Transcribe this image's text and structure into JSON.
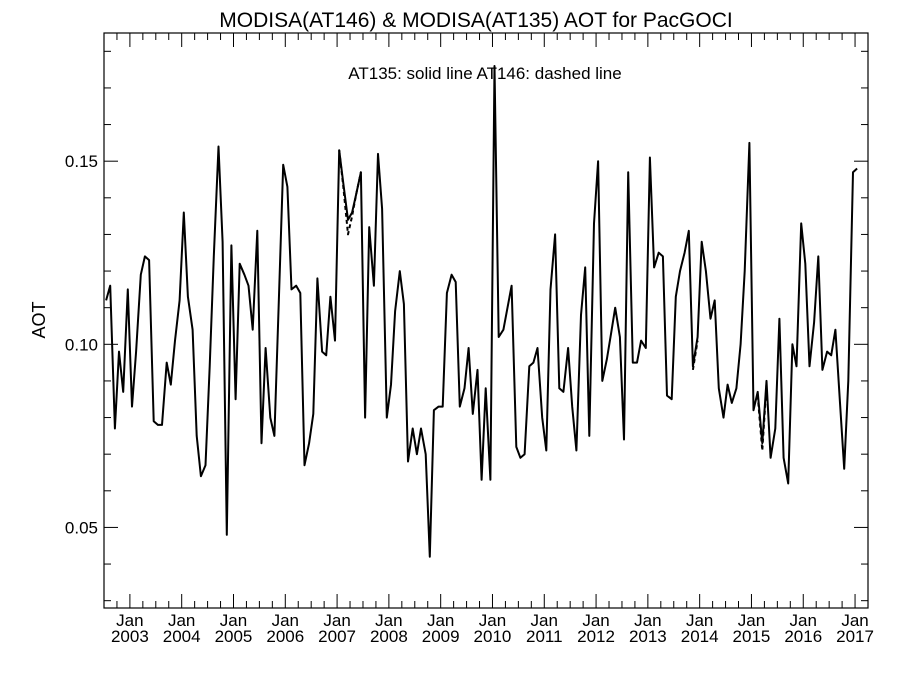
{
  "chart_data": {
    "type": "line",
    "title": "MODISA(AT146) & MODISA(AT135)  AOT for PacGOCI",
    "annotation": "AT135: solid line   AT146: dashed line",
    "ylabel": "AOT",
    "xlabel": "",
    "xlim": [
      2002.5,
      2017.25
    ],
    "ylim": [
      0.028,
      0.185
    ],
    "y_ticks": [
      0.05,
      0.1,
      0.15
    ],
    "y_tick_labels": [
      "0.05",
      "0.10",
      "0.15"
    ],
    "x_ticks": [
      {
        "month": "Jan",
        "year": "2003",
        "x": 2003.0
      },
      {
        "month": "Jan",
        "year": "2004",
        "x": 2004.0
      },
      {
        "month": "Jan",
        "year": "2005",
        "x": 2005.0
      },
      {
        "month": "Jan",
        "year": "2006",
        "x": 2006.0
      },
      {
        "month": "Jan",
        "year": "2007",
        "x": 2007.0
      },
      {
        "month": "Jan",
        "year": "2008",
        "x": 2008.0
      },
      {
        "month": "Jan",
        "year": "2009",
        "x": 2009.0
      },
      {
        "month": "Jan",
        "year": "2010",
        "x": 2010.0
      },
      {
        "month": "Jan",
        "year": "2011",
        "x": 2011.0
      },
      {
        "month": "Jan",
        "year": "2012",
        "x": 2012.0
      },
      {
        "month": "Jan",
        "year": "2013",
        "x": 2013.0
      },
      {
        "month": "Jan",
        "year": "2014",
        "x": 2014.0
      },
      {
        "month": "Jan",
        "year": "2015",
        "x": 2015.0
      },
      {
        "month": "Jan",
        "year": "2016",
        "x": 2016.0
      },
      {
        "month": "Jan",
        "year": "2017",
        "x": 2017.0
      }
    ],
    "grid": false,
    "series": [
      {
        "name": "AT135",
        "style": "solid",
        "color": "#000000",
        "points": [
          [
            2002.54,
            0.112
          ],
          [
            2002.62,
            0.116
          ],
          [
            2002.71,
            0.077
          ],
          [
            2002.79,
            0.098
          ],
          [
            2002.87,
            0.087
          ],
          [
            2002.96,
            0.115
          ],
          [
            2003.04,
            0.083
          ],
          [
            2003.12,
            0.098
          ],
          [
            2003.21,
            0.119
          ],
          [
            2003.29,
            0.124
          ],
          [
            2003.37,
            0.123
          ],
          [
            2003.46,
            0.079
          ],
          [
            2003.54,
            0.078
          ],
          [
            2003.62,
            0.078
          ],
          [
            2003.71,
            0.095
          ],
          [
            2003.79,
            0.089
          ],
          [
            2003.87,
            0.101
          ],
          [
            2003.96,
            0.112
          ],
          [
            2004.04,
            0.136
          ],
          [
            2004.12,
            0.113
          ],
          [
            2004.21,
            0.104
          ],
          [
            2004.29,
            0.075
          ],
          [
            2004.37,
            0.064
          ],
          [
            2004.46,
            0.067
          ],
          [
            2004.54,
            0.094
          ],
          [
            2004.62,
            0.124
          ],
          [
            2004.71,
            0.154
          ],
          [
            2004.79,
            0.128
          ],
          [
            2004.87,
            0.048
          ],
          [
            2004.96,
            0.127
          ],
          [
            2005.04,
            0.085
          ],
          [
            2005.12,
            0.122
          ],
          [
            2005.21,
            0.119
          ],
          [
            2005.29,
            0.116
          ],
          [
            2005.37,
            0.104
          ],
          [
            2005.46,
            0.131
          ],
          [
            2005.54,
            0.073
          ],
          [
            2005.62,
            0.099
          ],
          [
            2005.71,
            0.08
          ],
          [
            2005.79,
            0.075
          ],
          [
            2005.87,
            0.11
          ],
          [
            2005.96,
            0.149
          ],
          [
            2006.04,
            0.143
          ],
          [
            2006.12,
            0.115
          ],
          [
            2006.21,
            0.116
          ],
          [
            2006.29,
            0.114
          ],
          [
            2006.37,
            0.067
          ],
          [
            2006.46,
            0.073
          ],
          [
            2006.54,
            0.081
          ],
          [
            2006.62,
            0.118
          ],
          [
            2006.71,
            0.098
          ],
          [
            2006.79,
            0.097
          ],
          [
            2006.87,
            0.113
          ],
          [
            2006.96,
            0.101
          ],
          [
            2007.04,
            0.153
          ],
          [
            2007.12,
            0.144
          ],
          [
            2007.21,
            0.134
          ],
          [
            2007.29,
            0.136
          ],
          [
            2007.37,
            0.141
          ],
          [
            2007.46,
            0.147
          ],
          [
            2007.54,
            0.08
          ],
          [
            2007.62,
            0.132
          ],
          [
            2007.71,
            0.116
          ],
          [
            2007.79,
            0.152
          ],
          [
            2007.87,
            0.137
          ],
          [
            2007.96,
            0.08
          ],
          [
            2008.04,
            0.089
          ],
          [
            2008.12,
            0.109
          ],
          [
            2008.21,
            0.12
          ],
          [
            2008.29,
            0.111
          ],
          [
            2008.37,
            0.068
          ],
          [
            2008.46,
            0.077
          ],
          [
            2008.54,
            0.07
          ],
          [
            2008.62,
            0.077
          ],
          [
            2008.71,
            0.07
          ],
          [
            2008.79,
            0.042
          ],
          [
            2008.87,
            0.082
          ],
          [
            2008.96,
            0.083
          ],
          [
            2009.04,
            0.083
          ],
          [
            2009.12,
            0.114
          ],
          [
            2009.21,
            0.119
          ],
          [
            2009.29,
            0.117
          ],
          [
            2009.37,
            0.083
          ],
          [
            2009.46,
            0.088
          ],
          [
            2009.54,
            0.099
          ],
          [
            2009.62,
            0.081
          ],
          [
            2009.71,
            0.093
          ],
          [
            2009.79,
            0.063
          ],
          [
            2009.87,
            0.088
          ],
          [
            2009.96,
            0.063
          ],
          [
            2010.04,
            0.176
          ],
          [
            2010.12,
            0.102
          ],
          [
            2010.21,
            0.104
          ],
          [
            2010.29,
            0.11
          ],
          [
            2010.37,
            0.116
          ],
          [
            2010.46,
            0.072
          ],
          [
            2010.54,
            0.069
          ],
          [
            2010.62,
            0.07
          ],
          [
            2010.71,
            0.094
          ],
          [
            2010.79,
            0.095
          ],
          [
            2010.87,
            0.099
          ],
          [
            2010.96,
            0.08
          ],
          [
            2011.04,
            0.071
          ],
          [
            2011.12,
            0.115
          ],
          [
            2011.21,
            0.13
          ],
          [
            2011.29,
            0.088
          ],
          [
            2011.37,
            0.087
          ],
          [
            2011.46,
            0.099
          ],
          [
            2011.54,
            0.083
          ],
          [
            2011.62,
            0.071
          ],
          [
            2011.71,
            0.108
          ],
          [
            2011.79,
            0.121
          ],
          [
            2011.87,
            0.075
          ],
          [
            2011.96,
            0.133
          ],
          [
            2012.04,
            0.15
          ],
          [
            2012.12,
            0.09
          ],
          [
            2012.21,
            0.096
          ],
          [
            2012.29,
            0.103
          ],
          [
            2012.37,
            0.11
          ],
          [
            2012.46,
            0.102
          ],
          [
            2012.54,
            0.074
          ],
          [
            2012.62,
            0.147
          ],
          [
            2012.71,
            0.095
          ],
          [
            2012.79,
            0.095
          ],
          [
            2012.87,
            0.101
          ],
          [
            2012.96,
            0.099
          ],
          [
            2013.04,
            0.151
          ],
          [
            2013.12,
            0.121
          ],
          [
            2013.21,
            0.125
          ],
          [
            2013.29,
            0.124
          ],
          [
            2013.37,
            0.086
          ],
          [
            2013.46,
            0.085
          ],
          [
            2013.54,
            0.113
          ],
          [
            2013.62,
            0.12
          ],
          [
            2013.71,
            0.125
          ],
          [
            2013.79,
            0.131
          ],
          [
            2013.87,
            0.094
          ],
          [
            2013.96,
            0.102
          ],
          [
            2014.04,
            0.128
          ],
          [
            2014.12,
            0.12
          ],
          [
            2014.21,
            0.107
          ],
          [
            2014.29,
            0.112
          ],
          [
            2014.37,
            0.088
          ],
          [
            2014.46,
            0.08
          ],
          [
            2014.54,
            0.089
          ],
          [
            2014.62,
            0.084
          ],
          [
            2014.71,
            0.088
          ],
          [
            2014.79,
            0.1
          ],
          [
            2014.87,
            0.12
          ],
          [
            2014.96,
            0.155
          ],
          [
            2015.04,
            0.082
          ],
          [
            2015.12,
            0.087
          ],
          [
            2015.21,
            0.073
          ],
          [
            2015.29,
            0.09
          ],
          [
            2015.37,
            0.069
          ],
          [
            2015.46,
            0.077
          ],
          [
            2015.54,
            0.107
          ],
          [
            2015.62,
            0.069
          ],
          [
            2015.71,
            0.062
          ],
          [
            2015.79,
            0.1
          ],
          [
            2015.87,
            0.094
          ],
          [
            2015.96,
            0.133
          ],
          [
            2016.04,
            0.122
          ],
          [
            2016.12,
            0.094
          ],
          [
            2016.21,
            0.106
          ],
          [
            2016.29,
            0.124
          ],
          [
            2016.37,
            0.093
          ],
          [
            2016.46,
            0.098
          ],
          [
            2016.54,
            0.097
          ],
          [
            2016.62,
            0.104
          ],
          [
            2016.71,
            0.084
          ],
          [
            2016.79,
            0.066
          ],
          [
            2016.87,
            0.09
          ],
          [
            2016.96,
            0.147
          ],
          [
            2017.04,
            0.148
          ]
        ]
      },
      {
        "name": "AT146",
        "style": "dashed",
        "color": "#000000",
        "points": [
          [
            2007.04,
            0.153
          ],
          [
            2007.12,
            0.143
          ],
          [
            2007.21,
            0.13
          ],
          [
            2007.29,
            0.135
          ],
          [
            2007.37,
            0.141
          ],
          [
            2007.46,
            0.147
          ],
          [
            2013.87,
            0.093
          ],
          [
            2013.96,
            0.101
          ],
          [
            2015.12,
            0.086
          ],
          [
            2015.21,
            0.071
          ],
          [
            2015.29,
            0.089
          ]
        ]
      }
    ]
  }
}
